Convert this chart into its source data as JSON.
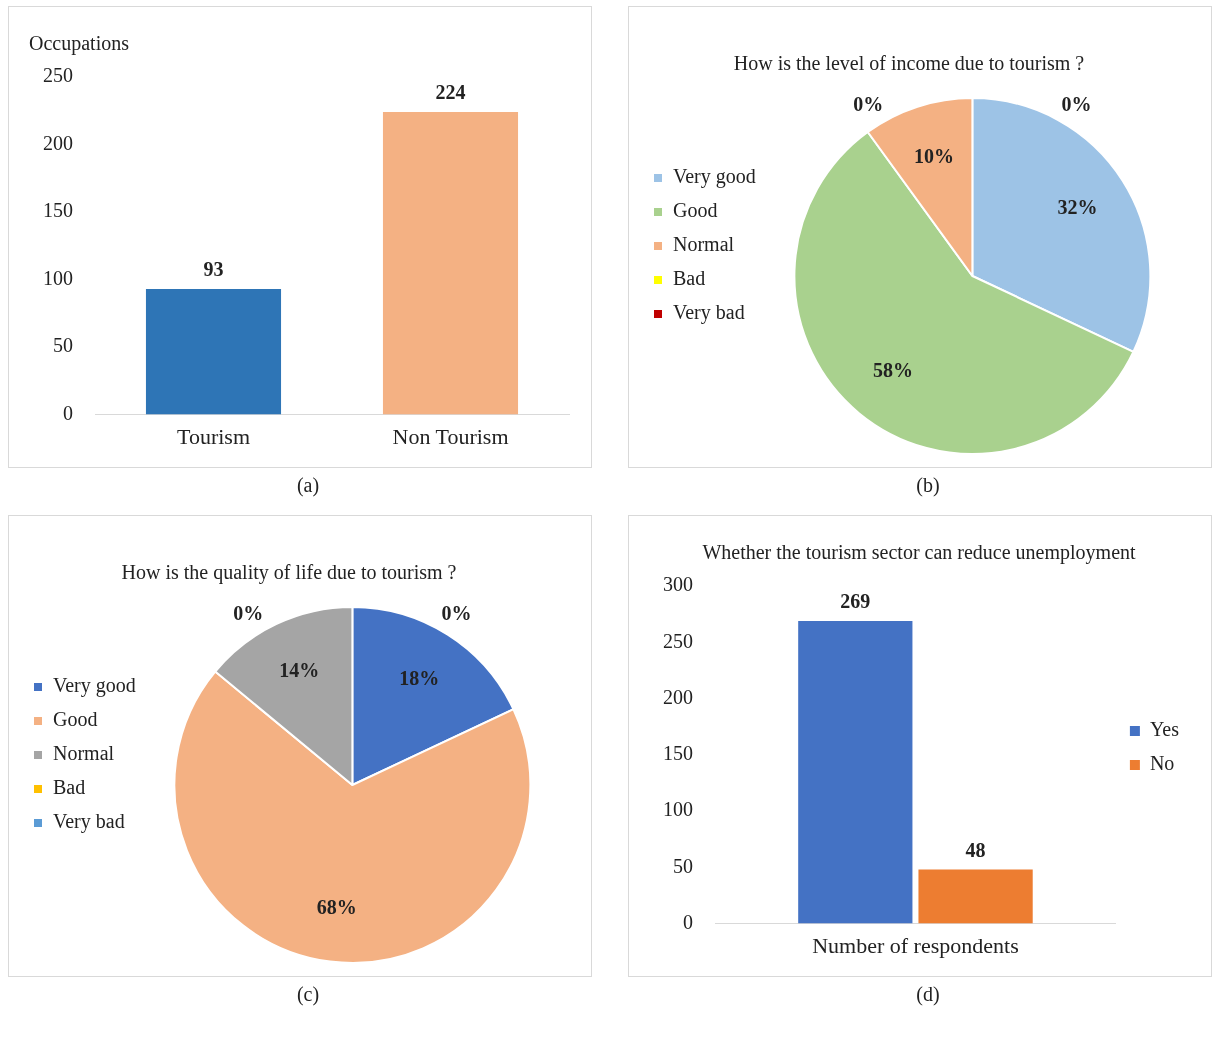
{
  "chart_data": [
    {
      "type": "bar",
      "title": "Occupations",
      "categories": [
        "Tourism",
        "Non Tourism"
      ],
      "values": [
        93,
        224
      ],
      "colors": [
        "#2e75b6",
        "#f4b183"
      ],
      "ylim": [
        0,
        250
      ],
      "yticks": [
        0,
        50,
        100,
        150,
        200,
        250
      ],
      "data_labels": true,
      "annotations": [
        "(a)"
      ]
    },
    {
      "type": "pie",
      "title": "How is the level of income due to tourism ?",
      "categories": [
        "Very good",
        "Good",
        "Normal",
        "Bad",
        "Very bad"
      ],
      "values": [
        32,
        58,
        10,
        0,
        0
      ],
      "colors": [
        "#9dc3e6",
        "#a9d18e",
        "#f4b183",
        "#ffff00",
        "#c00000"
      ],
      "value_labels": [
        "32%",
        "58%",
        "10%",
        "0%",
        "0%"
      ],
      "legend": "left",
      "annotations": [
        "(b)"
      ]
    },
    {
      "type": "pie",
      "title": "How is the quality of life due to tourism ?",
      "categories": [
        "Very good",
        "Good",
        "Normal",
        "Bad",
        "Very bad"
      ],
      "values": [
        18,
        68,
        14,
        0,
        0
      ],
      "colors": [
        "#4472c4",
        "#f4b183",
        "#a5a5a5",
        "#ffc000",
        "#5b9bd5"
      ],
      "value_labels": [
        "18%",
        "68%",
        "14%",
        "0%",
        "0%"
      ],
      "legend": "left",
      "annotations": [
        "(c)"
      ]
    },
    {
      "type": "bar",
      "title": "Whether the tourism sector can reduce unemployment",
      "categories": [
        "Number of respondents"
      ],
      "series": [
        {
          "name": "Yes",
          "color": "#4472c4",
          "values": [
            269
          ]
        },
        {
          "name": "No",
          "color": "#ed7d31",
          "values": [
            48
          ]
        }
      ],
      "ylim": [
        0,
        300
      ],
      "yticks": [
        0,
        50,
        100,
        150,
        200,
        250,
        300
      ],
      "data_labels": true,
      "legend": "right",
      "annotations": [
        "(d)"
      ]
    }
  ]
}
